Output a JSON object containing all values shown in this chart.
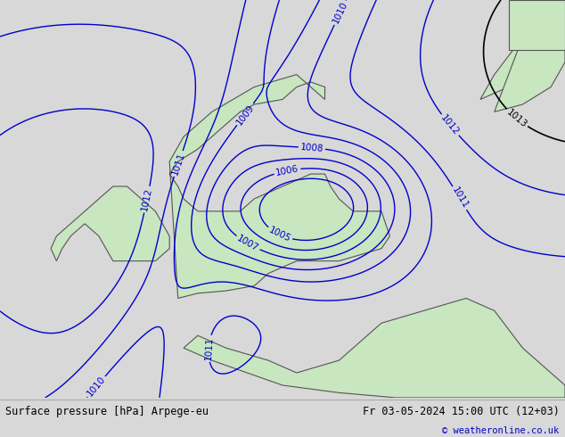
{
  "title_left": "Surface pressure [hPa] Arpege-eu",
  "title_right": "Fr 03-05-2024 15:00 UTC (12+03)",
  "copyright": "© weatheronline.co.uk",
  "bg_color": "#d8d8d8",
  "land_color": "#c8e6c0",
  "sea_color": "#d8d8d8",
  "blue_isobar_color": "#0000cc",
  "black_isobar_color": "#000000",
  "red_isobar_color": "#cc0000",
  "footer_bg": "#e8e8e8",
  "footer_text_color": "#000000",
  "copyright_color": "#0000cc",
  "label_fontsize": 7.5,
  "footer_fontsize": 8.5
}
